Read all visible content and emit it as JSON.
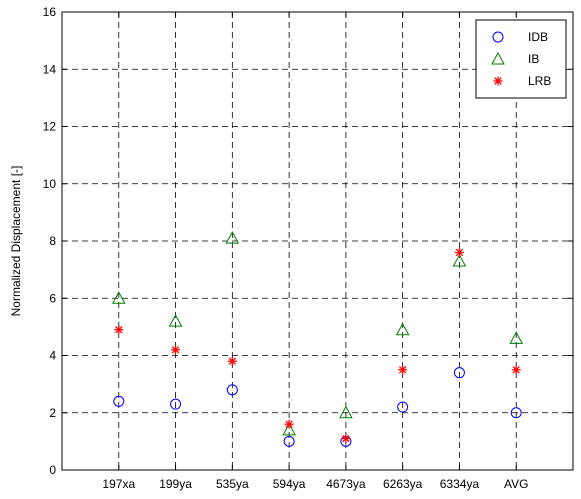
{
  "chart_data": {
    "type": "scatter",
    "title": "",
    "xlabel": "",
    "ylabel": "Normalized Displacement [-]",
    "categories": [
      "197xa",
      "199ya",
      "535ya",
      "594ya",
      "4673ya",
      "6263ya",
      "6334ya",
      "AVG"
    ],
    "ylim": [
      0,
      16
    ],
    "yticks": [
      "0",
      "2",
      "4",
      "6",
      "8",
      "10",
      "12",
      "14",
      "16"
    ],
    "grid": true,
    "legend_position": "top-right",
    "series": [
      {
        "name": "IDB",
        "marker": "circle",
        "color": "#0000ff",
        "values": [
          2.4,
          2.3,
          2.8,
          1.0,
          1.0,
          2.2,
          3.4,
          2.0
        ]
      },
      {
        "name": "IB",
        "marker": "triangle",
        "color": "#008000",
        "values": [
          6.0,
          5.2,
          8.1,
          1.4,
          2.0,
          4.9,
          7.3,
          4.6
        ]
      },
      {
        "name": "LRB",
        "marker": "asterisk",
        "color": "#ff0000",
        "values": [
          4.9,
          4.2,
          3.8,
          1.6,
          1.1,
          3.5,
          7.6,
          3.5
        ]
      }
    ]
  }
}
